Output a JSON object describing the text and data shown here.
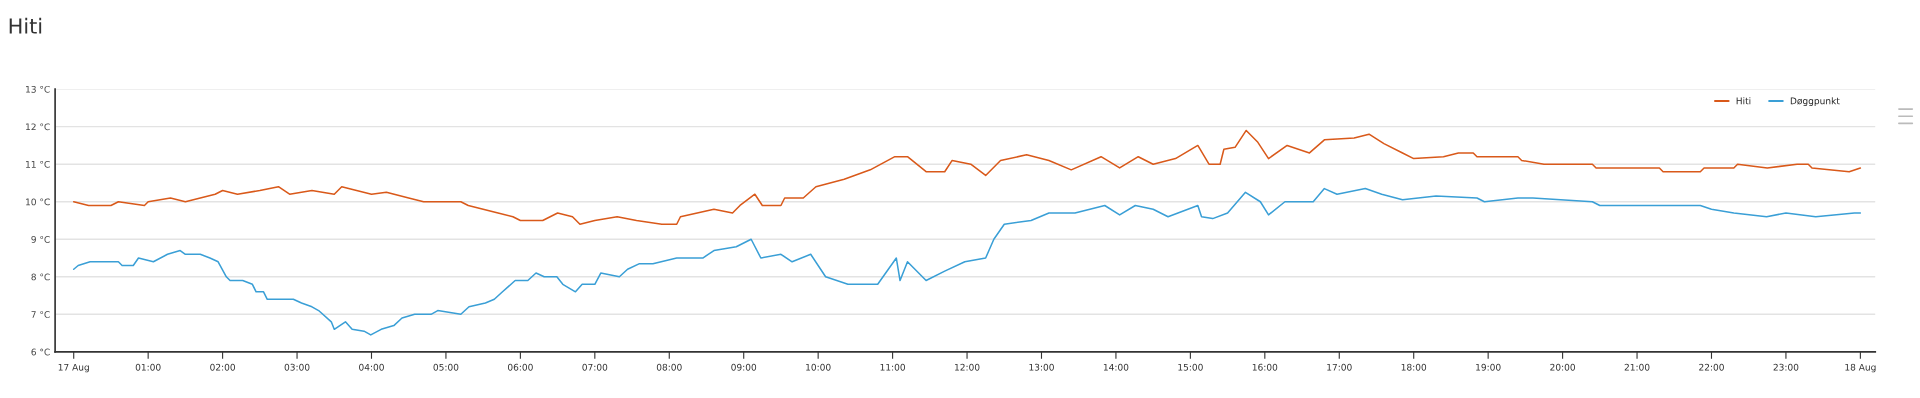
{
  "chart_data": {
    "type": "line",
    "title": "Hiti",
    "xlim": [
      -0.25,
      24.2
    ],
    "ylim": [
      6,
      13
    ],
    "xticks": [
      {
        "value": 0,
        "label": "17 Aug"
      },
      {
        "value": 1,
        "label": "01:00"
      },
      {
        "value": 2,
        "label": "02:00"
      },
      {
        "value": 3,
        "label": "03:00"
      },
      {
        "value": 4,
        "label": "04:00"
      },
      {
        "value": 5,
        "label": "05:00"
      },
      {
        "value": 6,
        "label": "06:00"
      },
      {
        "value": 7,
        "label": "07:00"
      },
      {
        "value": 8,
        "label": "08:00"
      },
      {
        "value": 9,
        "label": "09:00"
      },
      {
        "value": 10,
        "label": "10:00"
      },
      {
        "value": 11,
        "label": "11:00"
      },
      {
        "value": 12,
        "label": "12:00"
      },
      {
        "value": 13,
        "label": "13:00"
      },
      {
        "value": 14,
        "label": "14:00"
      },
      {
        "value": 15,
        "label": "15:00"
      },
      {
        "value": 16,
        "label": "16:00"
      },
      {
        "value": 17,
        "label": "17:00"
      },
      {
        "value": 18,
        "label": "18:00"
      },
      {
        "value": 19,
        "label": "19:00"
      },
      {
        "value": 20,
        "label": "20:00"
      },
      {
        "value": 21,
        "label": "21:00"
      },
      {
        "value": 22,
        "label": "22:00"
      },
      {
        "value": 23,
        "label": "23:00"
      },
      {
        "value": 24,
        "label": "18 Aug"
      }
    ],
    "yticks": [
      {
        "value": 6,
        "label": "6 °C"
      },
      {
        "value": 7,
        "label": "7 °C"
      },
      {
        "value": 8,
        "label": "8 °C"
      },
      {
        "value": 9,
        "label": "9 °C"
      },
      {
        "value": 10,
        "label": "10 °C"
      },
      {
        "value": 11,
        "label": "11 °C"
      },
      {
        "value": 12,
        "label": "12 °C"
      },
      {
        "value": 13,
        "label": "13 °C"
      }
    ],
    "grid": "y",
    "legend": "top right",
    "marker": "none",
    "line_style": "solid",
    "series": [
      {
        "name": "Hiti",
        "color": "#d9591a",
        "x": [
          0,
          0.2,
          0.5,
          0.6,
          0.95,
          1.0,
          1.3,
          1.5,
          1.7,
          1.9,
          2.0,
          2.2,
          2.5,
          2.75,
          2.9,
          3.2,
          3.5,
          3.6,
          3.8,
          4.0,
          4.2,
          4.5,
          4.7,
          5.0,
          5.2,
          5.3,
          5.5,
          5.7,
          5.9,
          6.0,
          6.3,
          6.4,
          6.5,
          6.7,
          6.8,
          7.0,
          7.3,
          7.56,
          7.9,
          8.1,
          8.15,
          8.6,
          8.85,
          8.95,
          9.15,
          9.25,
          9.5,
          9.55,
          9.8,
          9.97,
          10.35,
          10.7,
          11.03,
          11.2,
          11.45,
          11.7,
          11.8,
          12.05,
          12.25,
          12.45,
          12.8,
          13.1,
          13.4,
          13.8,
          14.05,
          14.3,
          14.5,
          14.8,
          15.1,
          15.25,
          15.4,
          15.45,
          15.6,
          15.75,
          15.9,
          16.05,
          16.3,
          16.6,
          16.8,
          17.2,
          17.4,
          17.6,
          17.85,
          18.0,
          18.4,
          18.6,
          18.8,
          18.85,
          19.4,
          19.45,
          19.75,
          20.4,
          20.45,
          21.3,
          21.35,
          21.85,
          21.9,
          22.3,
          22.35,
          22.75,
          23.15,
          23.3,
          23.35,
          23.85,
          24.0
        ],
        "values": [
          10.0,
          9.9,
          9.9,
          10.0,
          9.9,
          10.0,
          10.1,
          10.0,
          10.1,
          10.2,
          10.3,
          10.2,
          10.3,
          10.4,
          10.2,
          10.3,
          10.2,
          10.4,
          10.3,
          10.2,
          10.25,
          10.1,
          10.0,
          10.0,
          10.0,
          9.9,
          9.8,
          9.7,
          9.6,
          9.5,
          9.5,
          9.6,
          9.7,
          9.6,
          9.4,
          9.5,
          9.6,
          9.5,
          9.4,
          9.4,
          9.6,
          9.8,
          9.7,
          9.9,
          10.2,
          9.9,
          9.9,
          10.1,
          10.1,
          10.4,
          10.6,
          10.85,
          11.2,
          11.2,
          10.8,
          10.8,
          11.1,
          11.0,
          10.7,
          11.1,
          11.25,
          11.1,
          10.85,
          11.2,
          10.9,
          11.2,
          11.0,
          11.15,
          11.5,
          11.0,
          11.0,
          11.4,
          11.45,
          11.9,
          11.6,
          11.15,
          11.5,
          11.3,
          11.65,
          11.7,
          11.8,
          11.55,
          11.3,
          11.15,
          11.2,
          11.3,
          11.3,
          11.2,
          11.2,
          11.1,
          11.0,
          11.0,
          10.9,
          10.9,
          10.8,
          10.8,
          10.9,
          10.9,
          11.0,
          10.9,
          11.0,
          11.0,
          10.9,
          10.8,
          10.9
        ]
      },
      {
        "name": "Døggpunkt",
        "color": "#3a9fd6",
        "x": [
          0,
          0.06,
          0.22,
          0.6,
          0.65,
          0.8,
          0.87,
          1.07,
          1.26,
          1.43,
          1.5,
          1.7,
          1.83,
          1.94,
          2.05,
          2.1,
          2.27,
          2.4,
          2.45,
          2.55,
          2.6,
          2.73,
          2.95,
          3.06,
          3.2,
          3.29,
          3.46,
          3.5,
          3.65,
          3.74,
          3.9,
          3.99,
          4.13,
          4.3,
          4.41,
          4.58,
          4.8,
          4.89,
          5.2,
          5.31,
          5.53,
          5.65,
          5.76,
          5.93,
          6.1,
          6.21,
          6.32,
          6.49,
          6.57,
          6.74,
          6.83,
          7.0,
          7.08,
          7.33,
          7.44,
          7.6,
          7.78,
          8.1,
          8.45,
          8.6,
          8.9,
          9.1,
          9.23,
          9.5,
          9.65,
          9.9,
          10.1,
          10.4,
          10.8,
          11.05,
          11.1,
          11.2,
          11.45,
          11.7,
          11.97,
          12.25,
          12.36,
          12.5,
          12.86,
          13.1,
          13.45,
          13.85,
          14.05,
          14.26,
          14.5,
          14.7,
          15.1,
          15.15,
          15.3,
          15.5,
          15.74,
          15.94,
          16.05,
          16.27,
          16.43,
          16.65,
          16.8,
          16.97,
          17.35,
          17.57,
          17.85,
          18.3,
          18.85,
          18.95,
          19.4,
          19.6,
          20.4,
          20.5,
          21.02,
          21.85,
          22.0,
          22.3,
          22.74,
          23.0,
          23.4,
          23.92,
          24.0
        ],
        "values": [
          8.2,
          8.3,
          8.4,
          8.4,
          8.3,
          8.3,
          8.5,
          8.4,
          8.6,
          8.7,
          8.6,
          8.6,
          8.5,
          8.4,
          8.0,
          7.9,
          7.9,
          7.8,
          7.6,
          7.6,
          7.4,
          7.4,
          7.4,
          7.3,
          7.2,
          7.1,
          6.8,
          6.6,
          6.8,
          6.6,
          6.55,
          6.45,
          6.6,
          6.7,
          6.9,
          7.0,
          7.0,
          7.1,
          7.0,
          7.2,
          7.3,
          7.4,
          7.6,
          7.9,
          7.9,
          8.1,
          8.0,
          8.0,
          7.8,
          7.6,
          7.8,
          7.8,
          8.1,
          8.0,
          8.2,
          8.35,
          8.35,
          8.5,
          8.5,
          8.7,
          8.8,
          9.0,
          8.5,
          8.6,
          8.4,
          8.6,
          8.0,
          7.8,
          7.8,
          8.5,
          7.9,
          8.4,
          7.9,
          8.15,
          8.4,
          8.5,
          9.0,
          9.4,
          9.5,
          9.7,
          9.7,
          9.9,
          9.65,
          9.9,
          9.8,
          9.6,
          9.9,
          9.6,
          9.55,
          9.7,
          10.25,
          10.0,
          9.65,
          10.0,
          10.0,
          10.0,
          10.35,
          10.2,
          10.35,
          10.2,
          10.05,
          10.15,
          10.1,
          10.0,
          10.1,
          10.1,
          10.0,
          9.9,
          9.9,
          9.9,
          9.8,
          9.7,
          9.6,
          9.7,
          9.6,
          9.7,
          9.7
        ]
      }
    ]
  }
}
